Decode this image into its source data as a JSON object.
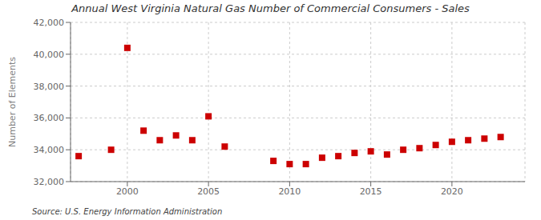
{
  "chart_data": {
    "type": "scatter",
    "title": "Annual West Virginia Natural Gas Number of Commercial Consumers - Sales",
    "ylabel": "Number of Elements",
    "annotation": "Source: U.S. Energy Information Administration",
    "x": [
      1997,
      1999,
      2000,
      2001,
      2002,
      2003,
      2004,
      2005,
      2006,
      2009,
      2010,
      2011,
      2012,
      2013,
      2014,
      2015,
      2016,
      2017,
      2018,
      2019,
      2020,
      2021,
      2022,
      2023
    ],
    "values": [
      33600,
      34000,
      40400,
      35200,
      34600,
      34900,
      34600,
      36100,
      34200,
      33300,
      33100,
      33100,
      33500,
      33600,
      33800,
      33900,
      33700,
      34000,
      34100,
      34300,
      34500,
      34600,
      34700,
      34800
    ],
    "color": "#cc0000",
    "marker": "square",
    "xlim": [
      1996.5,
      2024.5
    ],
    "ylim": [
      32000,
      42000
    ],
    "xticks": [
      2000,
      2005,
      2010,
      2015,
      2020
    ],
    "yticks": [
      {
        "value": 32000,
        "label": "32,000"
      },
      {
        "value": 34000,
        "label": "34,000"
      },
      {
        "value": 36000,
        "label": "36,000"
      },
      {
        "value": 38000,
        "label": "38,000"
      },
      {
        "value": 40000,
        "label": "40,000"
      },
      {
        "value": 42000,
        "label": "42,000"
      }
    ],
    "grid": true
  }
}
